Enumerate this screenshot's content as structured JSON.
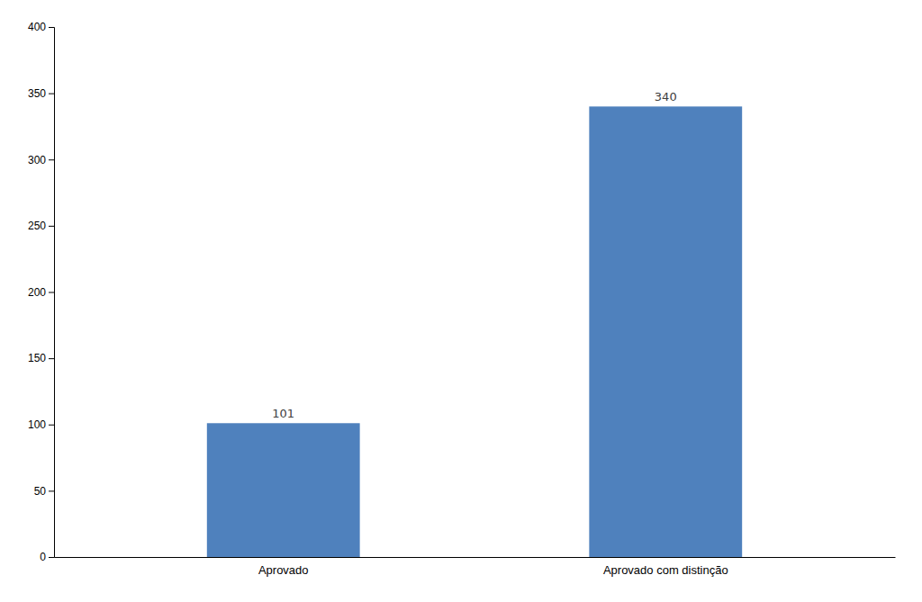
{
  "chart_data": {
    "type": "bar",
    "categories": [
      "Aprovado",
      "Aprovado com distinção"
    ],
    "values": [
      101,
      340
    ],
    "color": "#4f81bd",
    "ylim": [
      0,
      400
    ],
    "yticks": [
      0,
      50,
      100,
      150,
      200,
      250,
      300,
      350,
      400
    ],
    "grid": false,
    "data_labels": true
  }
}
